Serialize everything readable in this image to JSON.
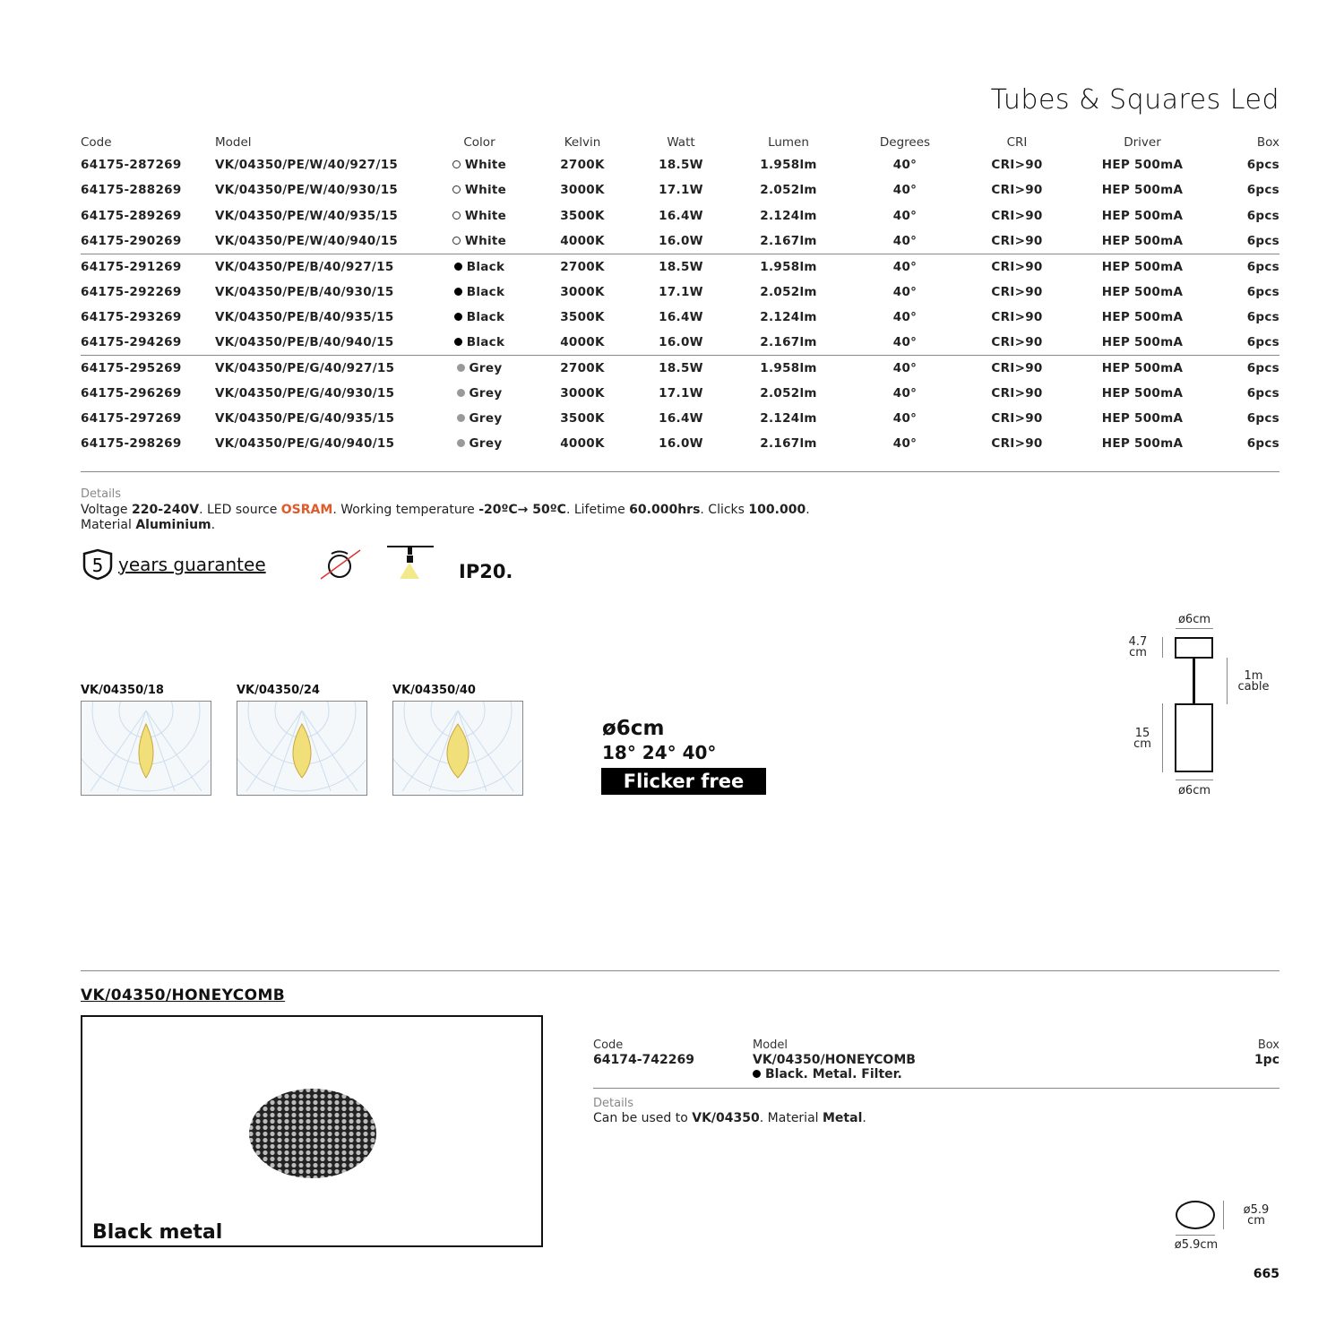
{
  "title": "Tubes & Squares Led",
  "table": {
    "headers": [
      "Code",
      "Model",
      "Color",
      "Kelvin",
      "Watt",
      "Lumen",
      "Degrees",
      "CRI",
      "Driver",
      "Box"
    ],
    "rows": [
      [
        "64175-287269",
        "VK/04350/PE/W/40/927/15",
        "White",
        "2700K",
        "18.5W",
        "1.958lm",
        "40°",
        "CRI>90",
        "HEP 500mA",
        "6pcs"
      ],
      [
        "64175-288269",
        "VK/04350/PE/W/40/930/15",
        "White",
        "3000K",
        "17.1W",
        "2.052lm",
        "40°",
        "CRI>90",
        "HEP 500mA",
        "6pcs"
      ],
      [
        "64175-289269",
        "VK/04350/PE/W/40/935/15",
        "White",
        "3500K",
        "16.4W",
        "2.124lm",
        "40°",
        "CRI>90",
        "HEP 500mA",
        "6pcs"
      ],
      [
        "64175-290269",
        "VK/04350/PE/W/40/940/15",
        "White",
        "4000K",
        "16.0W",
        "2.167lm",
        "40°",
        "CRI>90",
        "HEP 500mA",
        "6pcs"
      ],
      [
        "64175-291269",
        "VK/04350/PE/B/40/927/15",
        "Black",
        "2700K",
        "18.5W",
        "1.958lm",
        "40°",
        "CRI>90",
        "HEP 500mA",
        "6pcs"
      ],
      [
        "64175-292269",
        "VK/04350/PE/B/40/930/15",
        "Black",
        "3000K",
        "17.1W",
        "2.052lm",
        "40°",
        "CRI>90",
        "HEP 500mA",
        "6pcs"
      ],
      [
        "64175-293269",
        "VK/04350/PE/B/40/935/15",
        "Black",
        "3500K",
        "16.4W",
        "2.124lm",
        "40°",
        "CRI>90",
        "HEP 500mA",
        "6pcs"
      ],
      [
        "64175-294269",
        "VK/04350/PE/B/40/940/15",
        "Black",
        "4000K",
        "16.0W",
        "2.167lm",
        "40°",
        "CRI>90",
        "HEP 500mA",
        "6pcs"
      ],
      [
        "64175-295269",
        "VK/04350/PE/G/40/927/15",
        "Grey",
        "2700K",
        "18.5W",
        "1.958lm",
        "40°",
        "CRI>90",
        "HEP 500mA",
        "6pcs"
      ],
      [
        "64175-296269",
        "VK/04350/PE/G/40/930/15",
        "Grey",
        "3000K",
        "17.1W",
        "2.052lm",
        "40°",
        "CRI>90",
        "HEP 500mA",
        "6pcs"
      ],
      [
        "64175-297269",
        "VK/04350/PE/G/40/935/15",
        "Grey",
        "3500K",
        "16.4W",
        "2.124lm",
        "40°",
        "CRI>90",
        "HEP 500mA",
        "6pcs"
      ],
      [
        "64175-298269",
        "VK/04350/PE/G/40/940/15",
        "Grey",
        "4000K",
        "16.0W",
        "2.167lm",
        "40°",
        "CRI>90",
        "HEP 500mA",
        "6pcs"
      ]
    ],
    "color_swatches": {
      "White": "#ffffff",
      "Black": "#000000",
      "Grey": "#999999"
    }
  },
  "details": {
    "label": "Details",
    "t1": "Voltage ",
    "v1": "220-240V",
    "t2": ". LED source ",
    "osram": "OSRAM",
    "t3": ". Working temperature ",
    "v2": "-20ºC→ 50ºC",
    "t4": ". Lifetime ",
    "v3": "60.000hrs",
    "t5": ". Clicks ",
    "v4": "100.000",
    "t6": ".",
    "t7": "Material ",
    "v5": "Aluminium",
    "t8": ".",
    "osram_color": "#e05a2b"
  },
  "badges": {
    "guarantee_years": "5",
    "guarantee_text": "years guarantee",
    "ip": "IP20."
  },
  "polar": [
    {
      "label": "VK/04350/18"
    },
    {
      "label": "VK/04350/24"
    },
    {
      "label": "VK/04350/40"
    }
  ],
  "specs": {
    "diameter": "ø6cm",
    "angles": "18° 24° 40°",
    "flicker": "Flicker free"
  },
  "dims": {
    "top_d": "ø6cm",
    "top_h1": "4.7",
    "top_h2": "cm",
    "cable1": "1m",
    "cable2": "cable",
    "body_h1": "15",
    "body_h2": "cm",
    "bottom_d": "ø6cm"
  },
  "accessory": {
    "heading": "VK/04350/HONEYCOMB",
    "image_caption": "Black metal",
    "code_label": "Code",
    "code": "64174-742269",
    "model_label": "Model",
    "model": "VK/04350/HONEYCOMB",
    "model_desc": "Black. Metal. Filter.",
    "box_label": "Box",
    "box": "1pc",
    "details_label": "Details",
    "d1": "Can be used to ",
    "d2": "VK/04350",
    "d3": ". Material ",
    "d4": "Metal",
    "d5": ".",
    "dim_side1": "ø5.9",
    "dim_side2": "cm",
    "dim_bottom": "ø5.9cm"
  },
  "page_number": "665"
}
